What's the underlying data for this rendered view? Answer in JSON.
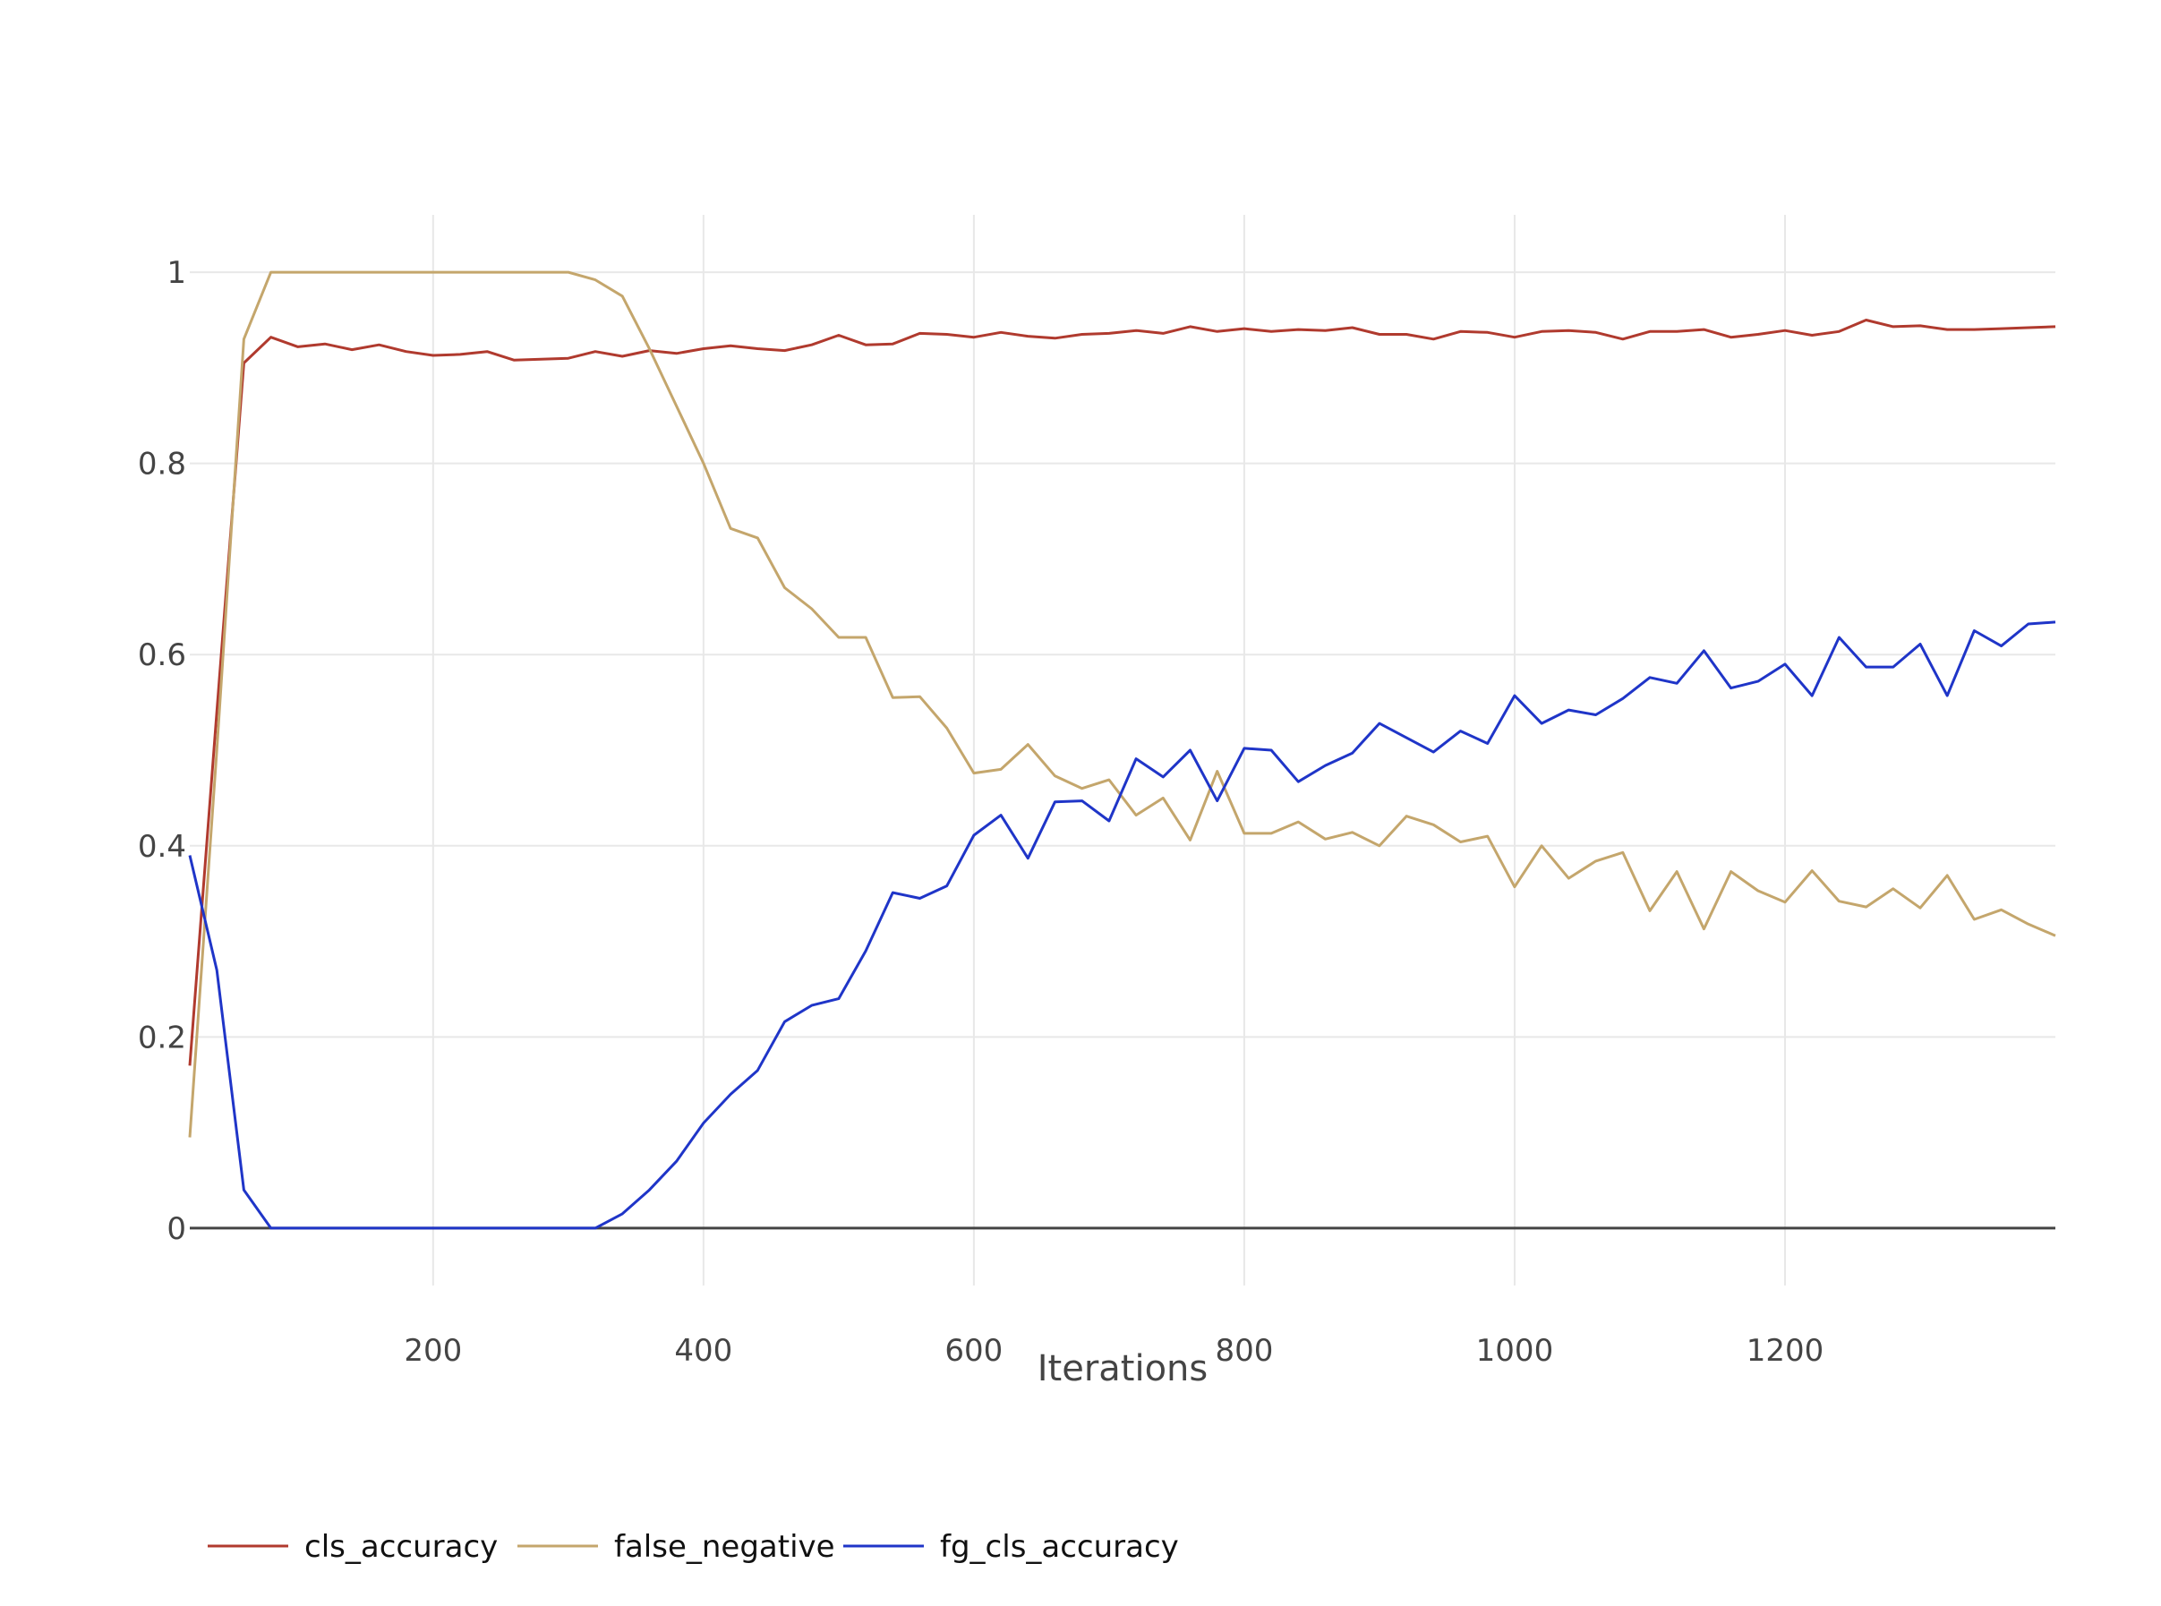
{
  "chart_data": {
    "type": "line",
    "title": "",
    "xlabel": "Iterations",
    "ylabel": "",
    "xlim": [
      20,
      1400
    ],
    "ylim": [
      -0.06,
      1.06
    ],
    "x_ticks": [
      200,
      400,
      600,
      800,
      1000,
      1200
    ],
    "y_ticks": [
      0,
      0.2,
      0.4,
      0.6,
      0.8,
      1
    ],
    "y_tick_labels": [
      "0",
      "0.2",
      "0.4",
      "0.6",
      "0.8",
      "1"
    ],
    "grid": true,
    "legend_position": "bottom-left",
    "x": [
      20,
      40,
      60,
      80,
      100,
      120,
      140,
      160,
      180,
      200,
      220,
      240,
      260,
      280,
      300,
      320,
      340,
      360,
      380,
      400,
      420,
      440,
      460,
      480,
      500,
      520,
      540,
      560,
      580,
      600,
      620,
      640,
      660,
      680,
      700,
      720,
      740,
      760,
      780,
      800,
      820,
      840,
      860,
      880,
      900,
      920,
      940,
      960,
      980,
      1000,
      1020,
      1040,
      1060,
      1080,
      1100,
      1120,
      1140,
      1160,
      1180,
      1200,
      1220,
      1240,
      1260,
      1280,
      1300,
      1320,
      1340,
      1360,
      1380,
      1400
    ],
    "series": [
      {
        "name": "cls_accuracy",
        "color": "#b03a2e",
        "values": [
          0.17,
          0.54,
          0.905,
          0.932,
          0.922,
          0.925,
          0.919,
          0.924,
          0.917,
          0.913,
          0.914,
          0.917,
          0.908,
          0.909,
          0.91,
          0.917,
          0.912,
          0.918,
          0.915,
          0.92,
          0.923,
          0.92,
          0.918,
          0.924,
          0.934,
          0.924,
          0.925,
          0.936,
          0.935,
          0.932,
          0.937,
          0.933,
          0.931,
          0.935,
          0.936,
          0.939,
          0.936,
          0.943,
          0.938,
          0.941,
          0.938,
          0.94,
          0.939,
          0.942,
          0.935,
          0.935,
          0.93,
          0.938,
          0.937,
          0.932,
          0.938,
          0.939,
          0.937,
          0.93,
          0.938,
          0.938,
          0.94,
          0.932,
          0.935,
          0.939,
          0.934,
          0.938,
          0.95,
          0.943,
          0.944,
          0.94,
          0.94,
          0.941,
          0.942,
          0.943
        ]
      },
      {
        "name": "false_negative",
        "color": "#c4a66c",
        "values": [
          0.095,
          0.5,
          0.93,
          1.0,
          1.0,
          1.0,
          1.0,
          1.0,
          1.0,
          1.0,
          1.0,
          1.0,
          1.0,
          1.0,
          1.0,
          0.992,
          0.975,
          0.92,
          0.86,
          0.8,
          0.732,
          0.722,
          0.67,
          0.648,
          0.618,
          0.618,
          0.555,
          0.556,
          0.523,
          0.476,
          0.48,
          0.506,
          0.473,
          0.46,
          0.469,
          0.432,
          0.45,
          0.406,
          0.478,
          0.413,
          0.413,
          0.425,
          0.407,
          0.414,
          0.4,
          0.431,
          0.422,
          0.404,
          0.41,
          0.357,
          0.4,
          0.366,
          0.384,
          0.393,
          0.332,
          0.373,
          0.313,
          0.373,
          0.353,
          0.341,
          0.374,
          0.342,
          0.336,
          0.355,
          0.335,
          0.369,
          0.323,
          0.333,
          0.318,
          0.306
        ]
      },
      {
        "name": "fg_cls_accuracy",
        "color": "#1f35c8",
        "values": [
          0.39,
          0.27,
          0.04,
          0.0,
          0.0,
          0.0,
          0.0,
          0.0,
          0.0,
          0.0,
          0.0,
          0.0,
          0.0,
          0.0,
          0.0,
          0.0,
          0.015,
          0.04,
          0.07,
          0.11,
          0.14,
          0.165,
          0.216,
          0.233,
          0.24,
          0.29,
          0.351,
          0.345,
          0.358,
          0.411,
          0.432,
          0.387,
          0.446,
          0.447,
          0.426,
          0.491,
          0.472,
          0.5,
          0.447,
          0.502,
          0.5,
          0.467,
          0.484,
          0.497,
          0.528,
          0.513,
          0.498,
          0.52,
          0.507,
          0.557,
          0.528,
          0.542,
          0.537,
          0.554,
          0.576,
          0.57,
          0.604,
          0.565,
          0.572,
          0.59,
          0.557,
          0.618,
          0.587,
          0.587,
          0.611,
          0.557,
          0.625,
          0.609,
          0.632,
          0.634
        ]
      }
    ]
  }
}
